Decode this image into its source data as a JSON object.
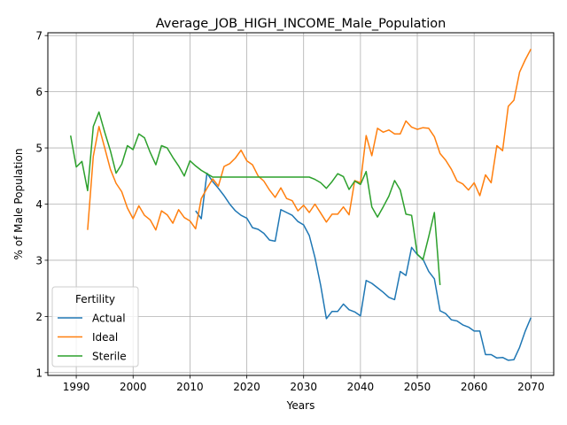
{
  "chart_data": {
    "type": "line",
    "title": "Average_JOB_HIGH_INCOME_Male_Population",
    "xlabel": "Years",
    "ylabel": "% of Male Population",
    "xlim": [
      1985,
      2074
    ],
    "ylim": [
      0.95,
      7.05
    ],
    "xticks": [
      1990,
      2000,
      2010,
      2020,
      2030,
      2040,
      2050,
      2060,
      2070
    ],
    "yticks": [
      1,
      2,
      3,
      4,
      5,
      6,
      7
    ],
    "grid": true,
    "legend": {
      "title": "Fertility",
      "placement": "lower-left"
    },
    "series": [
      {
        "name": "Actual",
        "color": "#1f77b4",
        "points": [
          [
            2011,
            3.88
          ],
          [
            2012,
            3.74
          ],
          [
            2013,
            4.55
          ],
          [
            2014,
            4.4
          ],
          [
            2015,
            4.28
          ],
          [
            2016,
            4.15
          ],
          [
            2017,
            4.0
          ],
          [
            2018,
            3.88
          ],
          [
            2019,
            3.8
          ],
          [
            2020,
            3.75
          ],
          [
            2021,
            3.58
          ],
          [
            2022,
            3.55
          ],
          [
            2023,
            3.48
          ],
          [
            2024,
            3.36
          ],
          [
            2025,
            3.34
          ],
          [
            2026,
            3.9
          ],
          [
            2027,
            3.85
          ],
          [
            2028,
            3.8
          ],
          [
            2029,
            3.69
          ],
          [
            2030,
            3.63
          ],
          [
            2031,
            3.44
          ],
          [
            2032,
            3.05
          ],
          [
            2033,
            2.55
          ],
          [
            2034,
            1.96
          ],
          [
            2035,
            2.09
          ],
          [
            2036,
            2.09
          ],
          [
            2037,
            2.22
          ],
          [
            2038,
            2.12
          ],
          [
            2039,
            2.08
          ],
          [
            2040,
            2.01
          ],
          [
            2041,
            2.64
          ],
          [
            2042,
            2.59
          ],
          [
            2043,
            2.51
          ],
          [
            2044,
            2.43
          ],
          [
            2045,
            2.34
          ],
          [
            2046,
            2.3
          ],
          [
            2047,
            2.8
          ],
          [
            2048,
            2.73
          ],
          [
            2049,
            3.23
          ],
          [
            2050,
            3.1
          ],
          [
            2051,
            3.02
          ],
          [
            2052,
            2.8
          ],
          [
            2053,
            2.67
          ],
          [
            2054,
            2.1
          ],
          [
            2055,
            2.05
          ],
          [
            2056,
            1.94
          ],
          [
            2057,
            1.92
          ],
          [
            2058,
            1.85
          ],
          [
            2059,
            1.81
          ],
          [
            2060,
            1.74
          ],
          [
            2061,
            1.74
          ],
          [
            2062,
            1.32
          ],
          [
            2063,
            1.32
          ],
          [
            2064,
            1.26
          ],
          [
            2065,
            1.27
          ],
          [
            2066,
            1.22
          ],
          [
            2067,
            1.23
          ],
          [
            2068,
            1.45
          ],
          [
            2069,
            1.74
          ],
          [
            2070,
            1.98
          ]
        ]
      },
      {
        "name": "Ideal",
        "color": "#ff7f0e",
        "points": [
          [
            1992,
            3.54
          ],
          [
            1993,
            4.85
          ],
          [
            1994,
            5.38
          ],
          [
            1995,
            5.0
          ],
          [
            1996,
            4.62
          ],
          [
            1997,
            4.37
          ],
          [
            1998,
            4.22
          ],
          [
            1999,
            3.93
          ],
          [
            2000,
            3.74
          ],
          [
            2001,
            3.97
          ],
          [
            2002,
            3.8
          ],
          [
            2003,
            3.72
          ],
          [
            2004,
            3.54
          ],
          [
            2005,
            3.88
          ],
          [
            2006,
            3.81
          ],
          [
            2007,
            3.66
          ],
          [
            2008,
            3.9
          ],
          [
            2009,
            3.76
          ],
          [
            2010,
            3.7
          ],
          [
            2011,
            3.56
          ],
          [
            2012,
            4.1
          ],
          [
            2013,
            4.28
          ],
          [
            2014,
            4.45
          ],
          [
            2015,
            4.32
          ],
          [
            2016,
            4.67
          ],
          [
            2017,
            4.72
          ],
          [
            2018,
            4.82
          ],
          [
            2019,
            4.96
          ],
          [
            2020,
            4.77
          ],
          [
            2021,
            4.7
          ],
          [
            2022,
            4.5
          ],
          [
            2023,
            4.41
          ],
          [
            2024,
            4.25
          ],
          [
            2025,
            4.12
          ],
          [
            2026,
            4.29
          ],
          [
            2027,
            4.1
          ],
          [
            2028,
            4.06
          ],
          [
            2029,
            3.88
          ],
          [
            2030,
            3.98
          ],
          [
            2031,
            3.85
          ],
          [
            2032,
            4.0
          ],
          [
            2033,
            3.84
          ],
          [
            2034,
            3.68
          ],
          [
            2035,
            3.82
          ],
          [
            2036,
            3.82
          ],
          [
            2037,
            3.95
          ],
          [
            2038,
            3.81
          ],
          [
            2039,
            4.42
          ],
          [
            2040,
            4.38
          ],
          [
            2041,
            5.22
          ],
          [
            2042,
            4.86
          ],
          [
            2043,
            5.35
          ],
          [
            2044,
            5.28
          ],
          [
            2045,
            5.32
          ],
          [
            2046,
            5.25
          ],
          [
            2047,
            5.25
          ],
          [
            2048,
            5.48
          ],
          [
            2049,
            5.37
          ],
          [
            2050,
            5.33
          ],
          [
            2051,
            5.36
          ],
          [
            2052,
            5.35
          ],
          [
            2053,
            5.2
          ],
          [
            2054,
            4.9
          ],
          [
            2055,
            4.78
          ],
          [
            2056,
            4.62
          ],
          [
            2057,
            4.41
          ],
          [
            2058,
            4.36
          ],
          [
            2059,
            4.25
          ],
          [
            2060,
            4.38
          ],
          [
            2061,
            4.15
          ],
          [
            2062,
            4.52
          ],
          [
            2063,
            4.38
          ],
          [
            2064,
            5.04
          ],
          [
            2065,
            4.95
          ],
          [
            2066,
            5.74
          ],
          [
            2067,
            5.85
          ],
          [
            2068,
            6.35
          ],
          [
            2069,
            6.57
          ],
          [
            2070,
            6.76
          ]
        ]
      },
      {
        "name": "Sterile",
        "color": "#2ca02c",
        "points": [
          [
            1989,
            5.22
          ],
          [
            1990,
            4.66
          ],
          [
            1991,
            4.76
          ],
          [
            1992,
            4.24
          ],
          [
            1993,
            5.38
          ],
          [
            1994,
            5.64
          ],
          [
            1995,
            5.28
          ],
          [
            1996,
            4.95
          ],
          [
            1997,
            4.55
          ],
          [
            1998,
            4.71
          ],
          [
            1999,
            5.04
          ],
          [
            2000,
            4.97
          ],
          [
            2001,
            5.25
          ],
          [
            2002,
            5.18
          ],
          [
            2003,
            4.92
          ],
          [
            2004,
            4.7
          ],
          [
            2005,
            5.04
          ],
          [
            2006,
            5.0
          ],
          [
            2007,
            4.83
          ],
          [
            2008,
            4.68
          ],
          [
            2009,
            4.5
          ],
          [
            2010,
            4.77
          ],
          [
            2011,
            4.68
          ],
          [
            2012,
            4.6
          ],
          [
            2013,
            4.54
          ],
          [
            2014,
            4.48
          ],
          [
            2015,
            4.48
          ],
          [
            2016,
            4.48
          ],
          [
            2017,
            4.48
          ],
          [
            2018,
            4.48
          ],
          [
            2019,
            4.48
          ],
          [
            2020,
            4.48
          ],
          [
            2021,
            4.48
          ],
          [
            2022,
            4.48
          ],
          [
            2023,
            4.48
          ],
          [
            2024,
            4.48
          ],
          [
            2025,
            4.48
          ],
          [
            2026,
            4.48
          ],
          [
            2027,
            4.48
          ],
          [
            2028,
            4.48
          ],
          [
            2029,
            4.48
          ],
          [
            2030,
            4.48
          ],
          [
            2031,
            4.48
          ],
          [
            2032,
            4.44
          ],
          [
            2033,
            4.38
          ],
          [
            2034,
            4.28
          ],
          [
            2035,
            4.4
          ],
          [
            2036,
            4.54
          ],
          [
            2037,
            4.49
          ],
          [
            2038,
            4.26
          ],
          [
            2039,
            4.41
          ],
          [
            2040,
            4.35
          ],
          [
            2041,
            4.58
          ],
          [
            2042,
            3.95
          ],
          [
            2043,
            3.77
          ],
          [
            2044,
            3.95
          ],
          [
            2045,
            4.14
          ],
          [
            2046,
            4.42
          ],
          [
            2047,
            4.25
          ],
          [
            2048,
            3.82
          ],
          [
            2049,
            3.8
          ],
          [
            2050,
            3.11
          ],
          [
            2051,
            3.01
          ],
          [
            2052,
            3.42
          ],
          [
            2053,
            3.85
          ],
          [
            2054,
            2.56
          ]
        ]
      }
    ]
  }
}
